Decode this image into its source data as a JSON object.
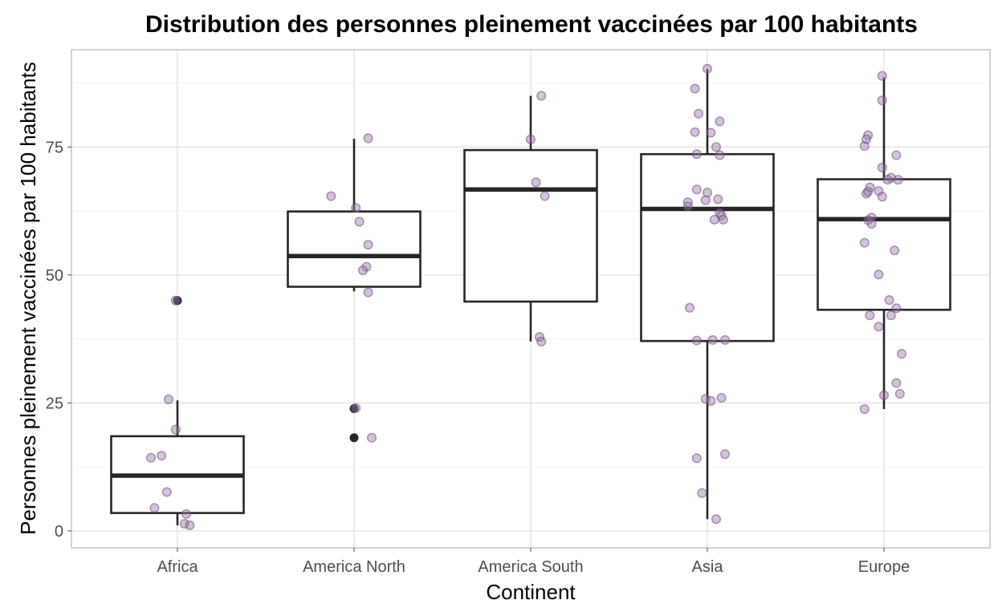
{
  "chart_data": {
    "type": "boxplot",
    "title": "Distribution des personnes pleinement vaccinées par 100 habitants",
    "xlabel": "Continent",
    "ylabel": "Personnes pleinement vaccinées par 100 habitants",
    "ylim": [
      -3.3,
      94
    ],
    "y_major_ticks": [
      0,
      25,
      50,
      75
    ],
    "y_minor_ticks": [
      12.5,
      37.5,
      62.5,
      87.5
    ],
    "grid": true,
    "categories": [
      "Africa",
      "America North",
      "America South",
      "Asia",
      "Europe"
    ],
    "colors": {
      "box_stroke": "#262626",
      "jitter_fill": "#9c7ba8",
      "grid": "#dedede",
      "panel_border": "#b3b3b3"
    },
    "boxes": [
      {
        "category": "Africa",
        "q1": 3.5,
        "median": 10.8,
        "q3": 18.5,
        "whisker_low": 1.1,
        "whisker_high": 25.5,
        "outliers": [
          45.0
        ]
      },
      {
        "category": "America North",
        "q1": 47.7,
        "median": 53.7,
        "q3": 62.4,
        "whisker_low": 46.8,
        "whisker_high": 76.6,
        "outliers": [
          23.9,
          18.2
        ]
      },
      {
        "category": "America South",
        "q1": 44.8,
        "median": 66.7,
        "q3": 74.4,
        "whisker_low": 37.0,
        "whisker_high": 85.0,
        "outliers": []
      },
      {
        "category": "Asia",
        "q1": 37.1,
        "median": 62.9,
        "q3": 73.6,
        "whisker_low": 2.3,
        "whisker_high": 90.2,
        "outliers": []
      },
      {
        "category": "Europe",
        "q1": 43.2,
        "median": 60.9,
        "q3": 68.7,
        "whisker_low": 23.8,
        "whisker_high": 88.6,
        "outliers": []
      }
    ],
    "jitter": [
      {
        "category": "Africa",
        "points": [
          {
            "x": 0.99,
            "y": 45.0
          },
          {
            "x": 0.95,
            "y": 25.7
          },
          {
            "x": 0.99,
            "y": 19.8
          },
          {
            "x": 0.85,
            "y": 14.3
          },
          {
            "x": 0.91,
            "y": 14.7
          },
          {
            "x": 0.94,
            "y": 7.6
          },
          {
            "x": 0.87,
            "y": 4.5
          },
          {
            "x": 1.05,
            "y": 3.3
          },
          {
            "x": 1.04,
            "y": 1.4
          },
          {
            "x": 1.07,
            "y": 1.1
          }
        ]
      },
      {
        "category": "America North",
        "points": [
          {
            "x": 2.08,
            "y": 76.7
          },
          {
            "x": 1.87,
            "y": 65.4
          },
          {
            "x": 2.01,
            "y": 63.1
          },
          {
            "x": 2.03,
            "y": 60.4
          },
          {
            "x": 2.08,
            "y": 55.9
          },
          {
            "x": 2.07,
            "y": 51.6
          },
          {
            "x": 2.05,
            "y": 50.9
          },
          {
            "x": 2.08,
            "y": 46.6
          },
          {
            "x": 2.01,
            "y": 24.0
          },
          {
            "x": 2.1,
            "y": 18.2
          }
        ]
      },
      {
        "category": "America South",
        "points": [
          {
            "x": 3.06,
            "y": 85.0
          },
          {
            "x": 3.0,
            "y": 76.5
          },
          {
            "x": 3.03,
            "y": 68.1
          },
          {
            "x": 3.08,
            "y": 65.4
          },
          {
            "x": 3.05,
            "y": 37.9
          },
          {
            "x": 3.06,
            "y": 37.0
          }
        ]
      },
      {
        "category": "Asia",
        "points": [
          {
            "x": 4.0,
            "y": 90.3
          },
          {
            "x": 3.93,
            "y": 86.4
          },
          {
            "x": 3.95,
            "y": 81.5
          },
          {
            "x": 4.07,
            "y": 80.0
          },
          {
            "x": 3.93,
            "y": 77.9
          },
          {
            "x": 4.02,
            "y": 77.8
          },
          {
            "x": 4.05,
            "y": 75.0
          },
          {
            "x": 3.94,
            "y": 73.6
          },
          {
            "x": 4.07,
            "y": 73.4
          },
          {
            "x": 3.94,
            "y": 66.7
          },
          {
            "x": 4.0,
            "y": 66.1
          },
          {
            "x": 3.99,
            "y": 64.6
          },
          {
            "x": 4.06,
            "y": 64.8
          },
          {
            "x": 3.89,
            "y": 64.2
          },
          {
            "x": 3.89,
            "y": 63.4
          },
          {
            "x": 4.07,
            "y": 62.1
          },
          {
            "x": 4.08,
            "y": 61.6
          },
          {
            "x": 4.04,
            "y": 60.8
          },
          {
            "x": 4.09,
            "y": 60.8
          },
          {
            "x": 3.9,
            "y": 43.6
          },
          {
            "x": 3.94,
            "y": 37.2
          },
          {
            "x": 4.03,
            "y": 37.3
          },
          {
            "x": 4.1,
            "y": 37.3
          },
          {
            "x": 3.99,
            "y": 25.8
          },
          {
            "x": 4.02,
            "y": 25.4
          },
          {
            "x": 4.08,
            "y": 26.0
          },
          {
            "x": 3.94,
            "y": 14.2
          },
          {
            "x": 4.1,
            "y": 15.0
          },
          {
            "x": 3.97,
            "y": 7.4
          },
          {
            "x": 4.05,
            "y": 2.3
          }
        ]
      },
      {
        "category": "Europe",
        "points": [
          {
            "x": 4.99,
            "y": 88.9
          },
          {
            "x": 4.99,
            "y": 84.1
          },
          {
            "x": 4.91,
            "y": 77.3
          },
          {
            "x": 4.9,
            "y": 76.5
          },
          {
            "x": 4.89,
            "y": 75.2
          },
          {
            "x": 5.07,
            "y": 73.4
          },
          {
            "x": 4.99,
            "y": 71.0
          },
          {
            "x": 5.04,
            "y": 69.0
          },
          {
            "x": 5.02,
            "y": 68.6
          },
          {
            "x": 5.08,
            "y": 68.6
          },
          {
            "x": 4.92,
            "y": 67.1
          },
          {
            "x": 4.97,
            "y": 66.4
          },
          {
            "x": 4.9,
            "y": 65.9
          },
          {
            "x": 4.91,
            "y": 66.3
          },
          {
            "x": 4.99,
            "y": 65.3
          },
          {
            "x": 4.93,
            "y": 61.2
          },
          {
            "x": 4.91,
            "y": 60.7
          },
          {
            "x": 4.93,
            "y": 60.0
          },
          {
            "x": 4.89,
            "y": 56.3
          },
          {
            "x": 5.06,
            "y": 54.8
          },
          {
            "x": 4.97,
            "y": 50.1
          },
          {
            "x": 5.03,
            "y": 45.1
          },
          {
            "x": 5.07,
            "y": 43.5
          },
          {
            "x": 4.92,
            "y": 42.1
          },
          {
            "x": 5.04,
            "y": 42.1
          },
          {
            "x": 4.97,
            "y": 39.9
          },
          {
            "x": 5.1,
            "y": 34.6
          },
          {
            "x": 5.07,
            "y": 28.9
          },
          {
            "x": 5.0,
            "y": 26.5
          },
          {
            "x": 5.09,
            "y": 26.8
          },
          {
            "x": 4.89,
            "y": 23.8
          }
        ]
      }
    ]
  }
}
